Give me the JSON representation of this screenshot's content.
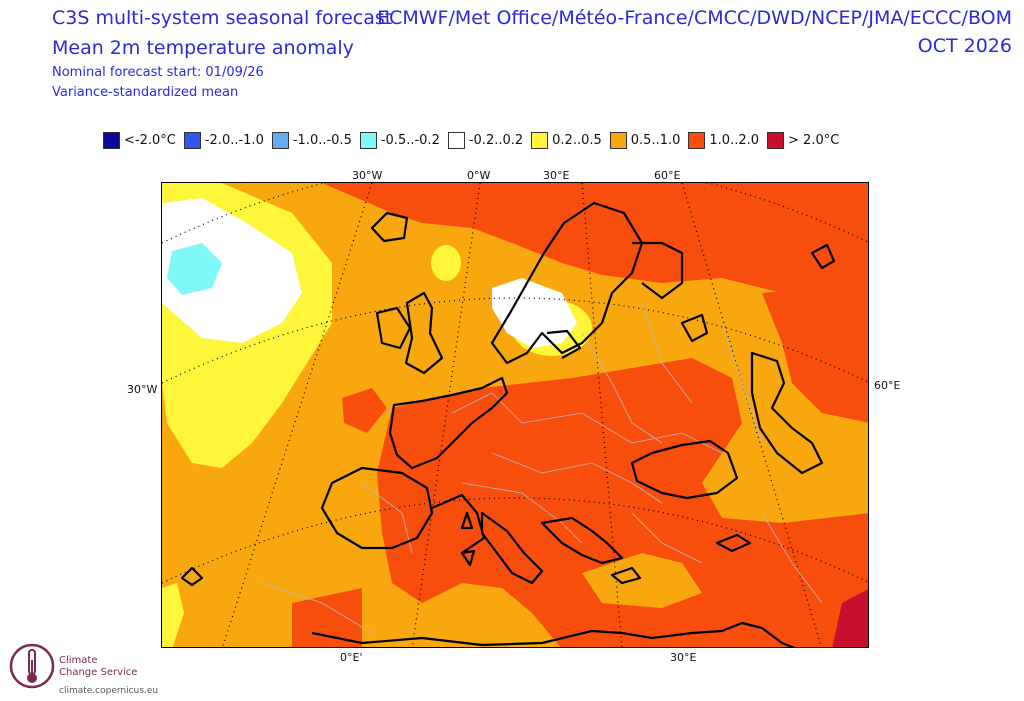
{
  "header": {
    "title_line1": "C3S multi-system seasonal forecast",
    "title_line2": "Mean 2m temperature anomaly",
    "subtitle_line1": "Nominal forecast start: 01/09/26",
    "subtitle_line2": "Variance-standardized mean",
    "centres": "ECMWF/Met Office/Météo-France/CMCC/DWD/NCEP/JMA/ECCC/BOM",
    "valid_month": "OCT 2026"
  },
  "legend": [
    {
      "label": "<-2.0°C",
      "color": "#0a0a96"
    },
    {
      "label": "-2.0..-1.0",
      "color": "#3355f0"
    },
    {
      "label": "-1.0..-0.5",
      "color": "#66aaf2"
    },
    {
      "label": "-0.5..-0.2",
      "color": "#80f8f8"
    },
    {
      "label": "-0.2..0.2",
      "color": "#ffffff"
    },
    {
      "label": "0.2..0.5",
      "color": "#fff53a"
    },
    {
      "label": "0.5..1.0",
      "color": "#f8a80e"
    },
    {
      "label": "1.0..2.0",
      "color": "#f74e0e"
    },
    {
      "label": "> 2.0°C",
      "color": "#c8102e"
    }
  ],
  "map": {
    "coords": {
      "top_30w": "30°W",
      "top_0w": "0°W",
      "top_30e": "30°E",
      "top_60e": "60°E",
      "left_30w": "30°W",
      "right_60e": "60°E",
      "bottom_0e": "0°E'",
      "bottom_30e": "30°E"
    }
  },
  "logo": {
    "line1": "Climate",
    "line2": "Change Service",
    "url": "climate.copernicus.eu"
  }
}
